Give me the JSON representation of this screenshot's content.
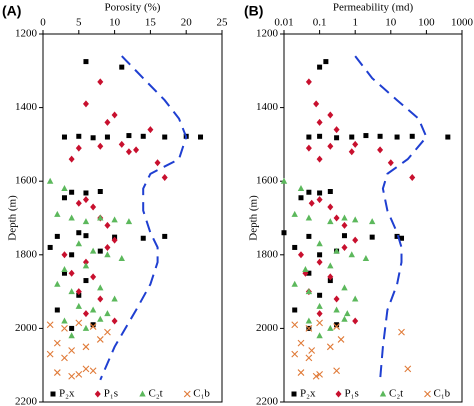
{
  "chart_data": [
    {
      "type": "scatter",
      "panel_label": "(A)",
      "xlabel": "Porosity (%)",
      "ylabel": "Depth (m)",
      "x_axis_position": "top",
      "x_scale": "linear",
      "y_inverted": true,
      "xlim": [
        0,
        25
      ],
      "xticks": [
        0,
        5,
        10,
        15,
        20,
        25
      ],
      "ylim": [
        1200,
        2200
      ],
      "yticks": [
        1200,
        1400,
        1600,
        1800,
        2000,
        2200
      ],
      "legend": "bottom",
      "series": [
        {
          "name": "P₂x",
          "color": "#000000",
          "marker": "square",
          "x": [
            6,
            11,
            3,
            5,
            7,
            9,
            12,
            14,
            17,
            20,
            22,
            4,
            6,
            8,
            3,
            5,
            2,
            6,
            10,
            14,
            17,
            1,
            4,
            8,
            3,
            6,
            5,
            2,
            7,
            4
          ],
          "values": [
            1275,
            1290,
            1480,
            1478,
            1482,
            1480,
            1476,
            1478,
            1480,
            1478,
            1480,
            1630,
            1632,
            1628,
            1645,
            1740,
            1750,
            1748,
            1752,
            1755,
            1750,
            1780,
            1800,
            1790,
            1850,
            1870,
            1910,
            1950,
            1990,
            2000
          ]
        },
        {
          "name": "P₁s",
          "color": "#c8102e",
          "marker": "diamond",
          "x": [
            8,
            6,
            9,
            10,
            5,
            8,
            11,
            13,
            15,
            12,
            4,
            5,
            6,
            7,
            8,
            9,
            10,
            16,
            17,
            3,
            6,
            9,
            7,
            5,
            8,
            6,
            10,
            4
          ],
          "values": [
            1330,
            1390,
            1440,
            1420,
            1510,
            1505,
            1500,
            1515,
            1460,
            1520,
            1540,
            1660,
            1650,
            1670,
            1700,
            1720,
            1760,
            1550,
            1590,
            1800,
            1820,
            1780,
            1860,
            1900,
            1920,
            1960,
            1980,
            1850
          ]
        },
        {
          "name": "C₂t",
          "color": "#5cb85c",
          "marker": "triangle",
          "x": [
            1,
            3,
            2,
            4,
            6,
            8,
            10,
            12,
            5,
            7,
            9,
            3,
            6,
            11,
            2,
            4,
            8,
            10,
            5,
            7,
            9,
            3,
            6,
            4,
            8
          ],
          "values": [
            1600,
            1620,
            1690,
            1700,
            1710,
            1700,
            1705,
            1710,
            1770,
            1790,
            1800,
            1840,
            1830,
            1810,
            1880,
            1900,
            1890,
            1920,
            1940,
            1950,
            1960,
            1980,
            2000,
            2020,
            1975
          ]
        },
        {
          "name": "C₁b",
          "color": "#e07b39",
          "marker": "cross",
          "x": [
            1,
            3,
            5,
            7,
            9,
            2,
            4,
            6,
            8,
            1,
            3,
            2,
            5,
            7,
            4,
            6
          ],
          "values": [
            1990,
            2000,
            1985,
            1995,
            2010,
            2040,
            2060,
            2050,
            2030,
            2070,
            2080,
            2120,
            2125,
            2115,
            2130,
            2110
          ]
        }
      ],
      "trend": {
        "color": "#1f3fd1",
        "style": "dashed",
        "x": [
          11,
          14,
          17,
          19,
          20,
          19,
          15,
          14,
          14,
          15,
          16,
          16,
          15,
          13,
          10,
          8
        ],
        "values": [
          1260,
          1320,
          1380,
          1430,
          1480,
          1540,
          1580,
          1620,
          1680,
          1740,
          1780,
          1820,
          1880,
          1950,
          2050,
          2140
        ]
      }
    },
    {
      "type": "scatter",
      "panel_label": "(B)",
      "xlabel": "Permeability (md)",
      "ylabel": "Depth (m)",
      "x_axis_position": "top",
      "x_scale": "log",
      "y_inverted": true,
      "xlim": [
        0.01,
        1000
      ],
      "xticks": [
        0.01,
        0.1,
        1,
        10,
        100,
        1000
      ],
      "ylim": [
        1200,
        2200
      ],
      "yticks": [
        1200,
        1400,
        1600,
        1800,
        2000,
        2200
      ],
      "legend": "bottom",
      "series": [
        {
          "name": "P₂x",
          "color": "#000000",
          "marker": "square",
          "x": [
            0.15,
            0.1,
            0.05,
            0.1,
            0.3,
            0.8,
            2,
            5,
            15,
            40,
            400,
            0.05,
            0.1,
            0.2,
            0.03,
            0.01,
            0.05,
            0.5,
            3,
            20,
            15,
            0.02,
            0.1,
            0.3,
            0.05,
            0.2,
            0.1,
            0.02,
            0.3,
            0.05
          ],
          "values": [
            1275,
            1290,
            1480,
            1478,
            1482,
            1480,
            1476,
            1478,
            1480,
            1478,
            1480,
            1630,
            1632,
            1628,
            1645,
            1740,
            1750,
            1748,
            1752,
            1755,
            1750,
            1780,
            1800,
            1790,
            1850,
            1870,
            1910,
            1950,
            1990,
            2000
          ]
        },
        {
          "name": "P₁s",
          "color": "#c8102e",
          "marker": "diamond",
          "x": [
            0.05,
            0.08,
            0.1,
            0.2,
            0.05,
            0.2,
            1,
            5,
            0.3,
            0.8,
            0.1,
            0.06,
            0.1,
            0.2,
            0.3,
            0.5,
            1,
            10,
            40,
            0.03,
            0.1,
            0.5,
            0.2,
            0.05,
            0.3,
            0.1,
            1,
            0.04
          ],
          "values": [
            1330,
            1390,
            1440,
            1420,
            1510,
            1505,
            1500,
            1515,
            1460,
            1520,
            1540,
            1660,
            1650,
            1670,
            1700,
            1720,
            1760,
            1550,
            1590,
            1800,
            1820,
            1780,
            1860,
            1900,
            1920,
            1960,
            1980,
            1850
          ]
        },
        {
          "name": "C₂t",
          "color": "#5cb85c",
          "marker": "triangle",
          "x": [
            0.01,
            0.03,
            0.02,
            0.05,
            0.2,
            0.5,
            1,
            3,
            0.1,
            0.3,
            0.8,
            0.04,
            0.2,
            2,
            0.02,
            0.05,
            0.5,
            1,
            0.1,
            0.3,
            0.6,
            0.05,
            0.2,
            0.1,
            0.5
          ],
          "values": [
            1600,
            1620,
            1690,
            1700,
            1710,
            1700,
            1705,
            1710,
            1770,
            1790,
            1800,
            1840,
            1830,
            1810,
            1880,
            1900,
            1890,
            1920,
            1940,
            1950,
            1960,
            1980,
            2000,
            2020,
            1975
          ]
        },
        {
          "name": "C₁b",
          "color": "#e07b39",
          "marker": "cross",
          "x": [
            0.02,
            0.05,
            0.1,
            0.3,
            20,
            0.03,
            0.06,
            0.2,
            0.4,
            0.02,
            0.05,
            0.03,
            0.1,
            0.3,
            0.08,
            30
          ],
          "values": [
            1990,
            2000,
            1985,
            1995,
            2010,
            2040,
            2060,
            2050,
            2030,
            2070,
            2080,
            2120,
            2125,
            2115,
            2130,
            2110
          ]
        }
      ],
      "trend": {
        "color": "#1f3fd1",
        "style": "dashed",
        "x": [
          1,
          3,
          15,
          60,
          100,
          30,
          8,
          6,
          8,
          15,
          20,
          20,
          15,
          8,
          6,
          5
        ],
        "values": [
          1260,
          1320,
          1380,
          1430,
          1480,
          1540,
          1580,
          1620,
          1680,
          1740,
          1780,
          1820,
          1880,
          1950,
          2050,
          2140
        ]
      }
    }
  ]
}
